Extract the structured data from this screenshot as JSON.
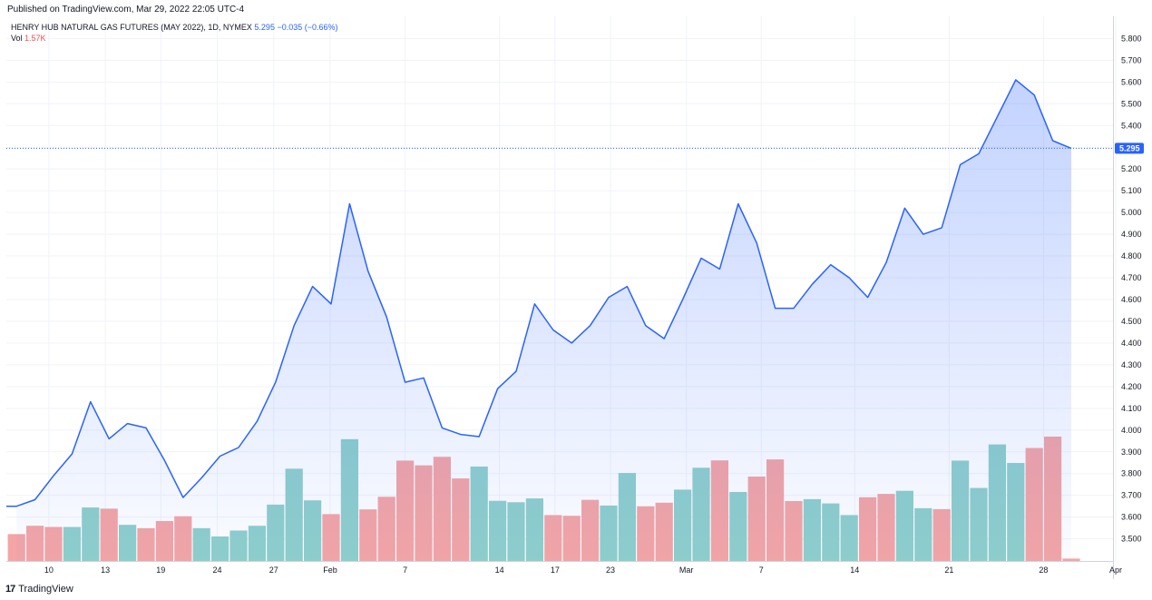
{
  "header": {
    "published": "Published on TradingView.com, Mar 29, 2022 22:05 UTC-4"
  },
  "legend": {
    "symbol": "HENRY HUB NATURAL GAS FUTURES (MAY 2022), 1D, NYMEX",
    "price": "5.295",
    "change": "−0.035 (−0.66%)",
    "vol_label": "Vol",
    "vol_value": "1.57K"
  },
  "footer": {
    "logo": "17",
    "brand": "TradingView"
  },
  "colors": {
    "line": "#2962ff",
    "volume_up": "#8fcfcb",
    "volume_down": "#f4a5a5",
    "price_tag": "#2962ff"
  },
  "chart_data": {
    "type": "area",
    "title": "",
    "xlabel": "",
    "ylabel": "",
    "ylim": [
      3.45,
      5.85
    ],
    "grid": true,
    "y_ticks": [
      "5.800",
      "5.700",
      "5.600",
      "5.500",
      "5.400",
      "5.300",
      "5.200",
      "5.100",
      "5.000",
      "4.900",
      "4.800",
      "4.700",
      "4.600",
      "4.500",
      "4.400",
      "4.300",
      "4.200",
      "4.100",
      "4.000",
      "3.900",
      "3.800",
      "3.700",
      "3.600",
      "3.500"
    ],
    "x_ticks": [
      {
        "label": "10",
        "index": 1.75
      },
      {
        "label": "13",
        "index": 4.8
      },
      {
        "label": "19",
        "index": 7.8
      },
      {
        "label": "24",
        "index": 10.85
      },
      {
        "label": "27",
        "index": 13.9
      },
      {
        "label": "Feb",
        "index": 16.95
      },
      {
        "label": "7",
        "index": 21.0
      },
      {
        "label": "14",
        "index": 26.1
      },
      {
        "label": "17",
        "index": 29.1
      },
      {
        "label": "23",
        "index": 32.1
      },
      {
        "label": "Mar",
        "index": 36.2
      },
      {
        "label": "7",
        "index": 40.25
      },
      {
        "label": "14",
        "index": 45.3
      },
      {
        "label": "21",
        "index": 50.4
      },
      {
        "label": "28",
        "index": 55.5
      },
      {
        "label": "Apr",
        "index": 59.4
      }
    ],
    "last_price": 5.295,
    "last_price_label": "5.295",
    "series": [
      {
        "values": [
          3.65,
          3.68,
          3.79,
          3.89,
          4.13,
          3.96,
          4.03,
          4.01,
          3.86,
          3.69,
          3.78,
          3.88,
          3.92,
          4.04,
          4.22,
          4.48,
          4.66,
          4.58,
          5.04,
          4.73,
          4.52,
          4.22,
          4.24,
          4.01,
          3.98,
          3.97,
          4.19,
          4.27,
          4.58,
          4.46,
          4.4,
          4.48,
          4.61,
          4.66,
          4.48,
          4.42,
          4.6,
          4.79,
          4.74,
          5.04,
          4.86,
          4.56,
          4.56,
          4.67,
          4.76,
          4.7,
          4.61,
          4.77,
          5.02,
          4.9,
          4.93,
          5.22,
          5.27,
          5.44,
          5.61,
          5.54,
          5.33,
          5.295
        ]
      }
    ],
    "volume": {
      "up": [
        false,
        false,
        false,
        true,
        true,
        false,
        true,
        false,
        false,
        false,
        true,
        true,
        true,
        true,
        true,
        true,
        true,
        false,
        true,
        false,
        false,
        false,
        false,
        false,
        false,
        true,
        true,
        true,
        true,
        false,
        false,
        false,
        true,
        true,
        false,
        false,
        true,
        true,
        false,
        true,
        false,
        false,
        false,
        true,
        true,
        true,
        false,
        false,
        true,
        true,
        false,
        true,
        true,
        true,
        true,
        false,
        false,
        false
      ],
      "heights": [
        0.113,
        0.148,
        0.143,
        0.143,
        0.225,
        0.22,
        0.152,
        0.138,
        0.168,
        0.188,
        0.138,
        0.103,
        0.128,
        0.148,
        0.237,
        0.388,
        0.255,
        0.197,
        0.512,
        0.217,
        0.27,
        0.422,
        0.402,
        0.438,
        0.347,
        0.397,
        0.253,
        0.247,
        0.263,
        0.193,
        0.19,
        0.257,
        0.233,
        0.37,
        0.23,
        0.245,
        0.3,
        0.392,
        0.423,
        0.29,
        0.355,
        0.427,
        0.252,
        0.26,
        0.242,
        0.193,
        0.268,
        0.282,
        0.295,
        0.222,
        0.218,
        0.422,
        0.307,
        0.49,
        0.412,
        0.475,
        0.523,
        0.01
      ]
    }
  }
}
